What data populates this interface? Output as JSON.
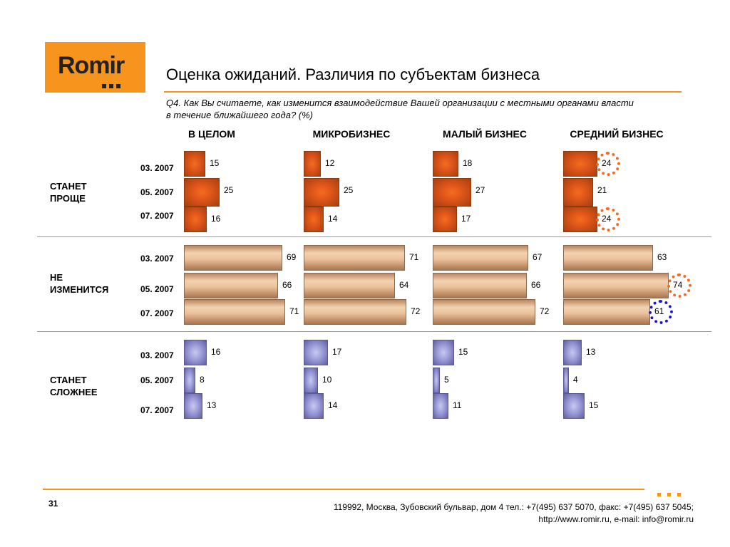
{
  "logo": {
    "text": "Romir"
  },
  "header": {
    "title": "Оценка ожиданий. Различия по субъектам бизнеса",
    "question_line1": "Q4. Как Вы считаете, как изменится взаимодействие Вашей организации с местными органами власти",
    "question_line2": "в течение ближайшего года? (%)"
  },
  "colors": {
    "accent": "#f7941d",
    "easier": "#e2581a",
    "same": "#ebc39c",
    "harder": "#9a9ad8",
    "highlight_up": "#f26b21",
    "highlight_down": "#1a1acc"
  },
  "chart_data": {
    "type": "bar",
    "orientation": "horizontal",
    "columns": [
      "В ЦЕЛОМ",
      "МИКРОБИЗНЕС",
      "МАЛЫЙ БИЗНЕС",
      "СРЕДНИЙ БИЗНЕС"
    ],
    "periods": [
      "03. 2007",
      "05. 2007",
      "07. 2007"
    ],
    "groups": [
      {
        "label_line1": "СТАНЕТ",
        "label_line2": "ПРОЩЕ",
        "key": "easier",
        "values": [
          [
            15,
            25,
            16
          ],
          [
            12,
            25,
            14
          ],
          [
            18,
            27,
            17
          ],
          [
            24,
            21,
            24
          ]
        ]
      },
      {
        "label_line1": "НЕ",
        "label_line2": "ИЗМЕНИТСЯ",
        "key": "same",
        "values": [
          [
            69,
            66,
            71
          ],
          [
            71,
            64,
            72
          ],
          [
            67,
            66,
            72
          ],
          [
            63,
            74,
            61
          ]
        ]
      },
      {
        "label_line1": "СТАНЕТ",
        "label_line2": "СЛОЖНЕЕ",
        "key": "harder",
        "values": [
          [
            16,
            8,
            13
          ],
          [
            17,
            10,
            14
          ],
          [
            15,
            5,
            11
          ],
          [
            13,
            4,
            15
          ]
        ]
      }
    ],
    "highlighted": [
      {
        "group": 0,
        "column": 3,
        "period": 0,
        "direction": "up"
      },
      {
        "group": 0,
        "column": 3,
        "period": 2,
        "direction": "up"
      },
      {
        "group": 1,
        "column": 3,
        "period": 1,
        "direction": "up"
      },
      {
        "group": 1,
        "column": 3,
        "period": 2,
        "direction": "down"
      }
    ]
  },
  "footer": {
    "page": "31",
    "address_line1": "119992, Москва, Зубовский бульвар, дом 4   тел.: +7(495) 637 5070, факс: +7(495) 637 5045;",
    "address_line2": "http://www.romir.ru, e-mail: info@romir.ru"
  }
}
